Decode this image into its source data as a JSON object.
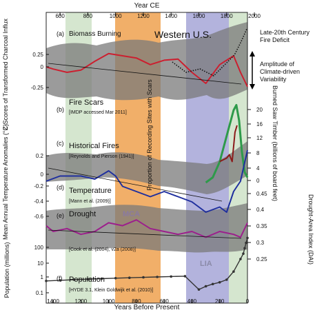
{
  "figure": {
    "top_axis_label": "Year CE",
    "bottom_axis_label": "Years Before Present",
    "region_label": "Western U.S.",
    "period_labels": {
      "mca": "MCA",
      "lia": "LIA"
    },
    "right_annotations": {
      "fire_deficit": [
        "Late-20th Century",
        "Fire Deficit"
      ],
      "amplitude": [
        "Amplitude of",
        "Climate-driven",
        "Variability"
      ]
    },
    "colors": {
      "band_gray": "#7a7a7a",
      "mca_orange": "#f0a659",
      "lia_purple": "#9a9ad2",
      "green_band": "#d5e6cf",
      "charcoal_red": "#cc1f2f",
      "temperature_blue": "#1f2f9e",
      "drought_magenta": "#9c1f8c",
      "scars_green": "#2e9a4a",
      "timber_brown": "#8b1a1a",
      "population_dark": "#333333"
    }
  },
  "chart_data": [
    {
      "panel": "(a)",
      "title": "Biomass Burning",
      "type": "line",
      "ylabel": "Z-Scores of Transformed Charcoal Influx",
      "x_axis": "Years Before Present",
      "ylim": [
        -0.3,
        0.45
      ],
      "yticks": [
        "0.25",
        "0",
        "-0.25"
      ],
      "series": [
        {
          "name": "smoothed",
          "x": [
            1450,
            1400,
            1300,
            1200,
            1100,
            1000,
            900,
            800,
            700,
            600,
            500,
            400,
            300,
            200,
            100,
            50,
            0
          ],
          "values": [
            0.0,
            -0.02,
            -0.05,
            -0.03,
            0.05,
            0.12,
            0.1,
            0.08,
            0.02,
            0.06,
            0.07,
            -0.05,
            -0.15,
            0.02,
            0.1,
            -0.05,
            -0.18
          ]
        }
      ]
    },
    {
      "panel": "(b)",
      "title": "Fire Scars",
      "source": "[IMDP accessed Mar 2011]",
      "type": "line",
      "ylabel": "Proportion of Recording Sites with Scars",
      "y2label": "Burned Saw Timber (billions of board feet)",
      "y2ticks": [
        "20",
        "16",
        "12",
        "8",
        "4",
        "0"
      ],
      "series": [
        {
          "name": "scars",
          "x": [
            300,
            250,
            200,
            150,
            100,
            80,
            60,
            40,
            20,
            0
          ],
          "values": [
            0.1,
            0.15,
            0.3,
            0.55,
            0.8,
            0.85,
            0.7,
            0.4,
            0.2,
            0.15
          ]
        },
        {
          "name": "timber",
          "x": [
            200,
            150,
            130,
            110,
            90,
            75
          ],
          "values": [
            5.5,
            6.5,
            7.5,
            5.5,
            14,
            16
          ]
        }
      ]
    },
    {
      "panel": "(c)",
      "title": "Historical Fires",
      "source": "[Reynolds and Pierson (1941)]"
    },
    {
      "panel": "(d)",
      "title": "Temperature",
      "source": "[Mann et al. (2009)]",
      "type": "line",
      "ylabel": "Mean Annual Temperature Anomalies (°C)",
      "yticks": [
        "0.2",
        "0",
        "-0.2",
        "-0.4",
        "-0.6"
      ],
      "series": [
        {
          "name": "temperature",
          "x": [
            1450,
            1350,
            1200,
            1100,
            1000,
            950,
            900,
            800,
            700,
            600,
            500,
            400,
            300,
            200,
            150,
            100,
            50,
            0
          ],
          "values": [
            -0.1,
            -0.05,
            -0.05,
            -0.08,
            0.0,
            -0.05,
            -0.15,
            -0.2,
            -0.25,
            -0.2,
            -0.25,
            -0.3,
            -0.4,
            -0.35,
            -0.4,
            -0.2,
            -0.1,
            0.2
          ]
        }
      ]
    },
    {
      "panel": "(e)",
      "title": "Drought",
      "source": "[Cook et al. (2004), v2a (2008)]",
      "type": "line",
      "y2label": "Drought-Area Index (DAI)",
      "y2ticks": [
        "0.45",
        "0.4",
        "0.35",
        "0.3",
        "0.25"
      ],
      "series": [
        {
          "name": "drought",
          "x": [
            1450,
            1400,
            1300,
            1200,
            1100,
            1000,
            900,
            800,
            700,
            600,
            500,
            400,
            300,
            200,
            100,
            50,
            0
          ],
          "values": [
            0.37,
            0.35,
            0.36,
            0.34,
            0.35,
            0.38,
            0.37,
            0.39,
            0.36,
            0.35,
            0.34,
            0.35,
            0.33,
            0.35,
            0.34,
            0.33,
            0.38
          ]
        }
      ]
    },
    {
      "panel": "(f)",
      "title": "Population",
      "source": "[HYDE 3.1, Klein Goldwijk et al. (2010)]",
      "type": "line",
      "ylabel": "Population (millions)",
      "yticks": [
        "100",
        "10",
        "1",
        "0.1"
      ],
      "series": [
        {
          "name": "population",
          "x": [
            1450,
            1350,
            1250,
            1150,
            1050,
            950,
            850,
            750,
            650,
            550,
            450,
            350,
            300,
            250,
            200,
            150,
            100,
            50,
            30,
            20,
            10,
            0
          ],
          "values": [
            0.6,
            0.65,
            0.7,
            0.75,
            0.8,
            0.85,
            0.9,
            0.95,
            1.0,
            1.05,
            1.1,
            0.2,
            0.3,
            0.4,
            0.5,
            0.7,
            2,
            10,
            20,
            40,
            80,
            150
          ]
        }
      ]
    },
    {
      "type": "axes",
      "top_axis": {
        "label": "Year CE",
        "ticks": [
          "600",
          "800",
          "1000",
          "1200",
          "1400",
          "1600",
          "1800",
          "2000"
        ]
      },
      "bottom_axis": {
        "label": "Years Before Present",
        "ticks": [
          "1400",
          "1200",
          "1000",
          "800",
          "600",
          "400",
          "200",
          "0"
        ]
      }
    }
  ]
}
